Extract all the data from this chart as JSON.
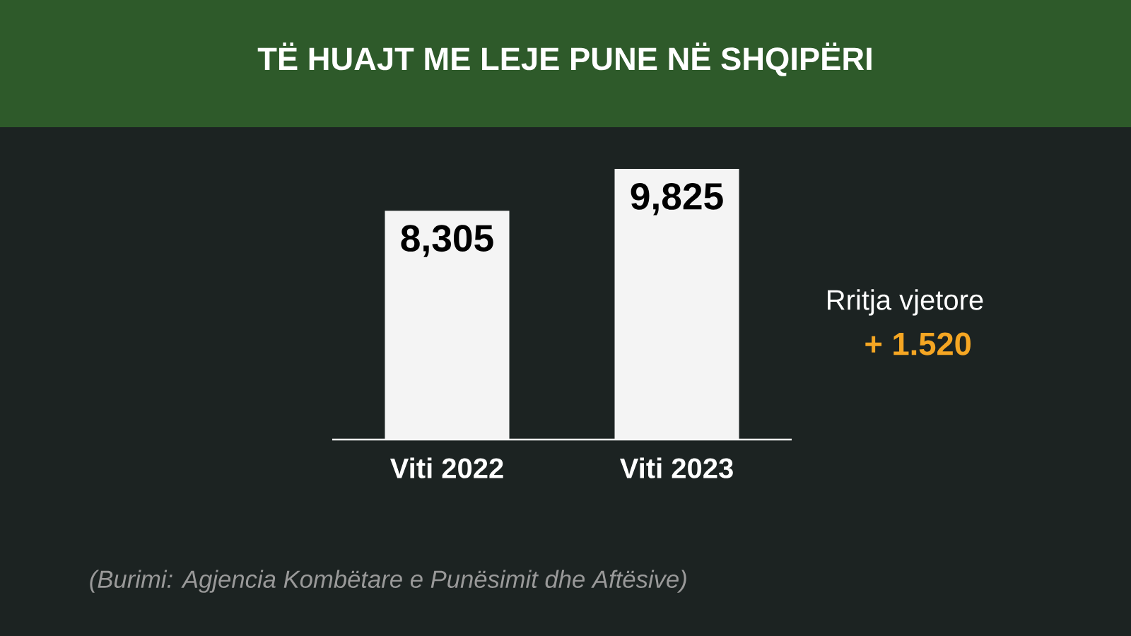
{
  "chart_data": {
    "type": "bar",
    "title": "TË HUAJT ME LEJE PUNE NË SHQIPËRI",
    "categories": [
      "Viti 2022",
      "Viti 2023"
    ],
    "values": [
      8305,
      9825
    ],
    "value_labels": [
      "8,305",
      "9,825"
    ],
    "color": "#f4f4f4",
    "annotations": [
      "Rritja vjetore",
      "+ 1.520",
      "(Burimi: Agjencia Kombëtare e Punësimit dhe Aftësive)"
    ]
  }
}
